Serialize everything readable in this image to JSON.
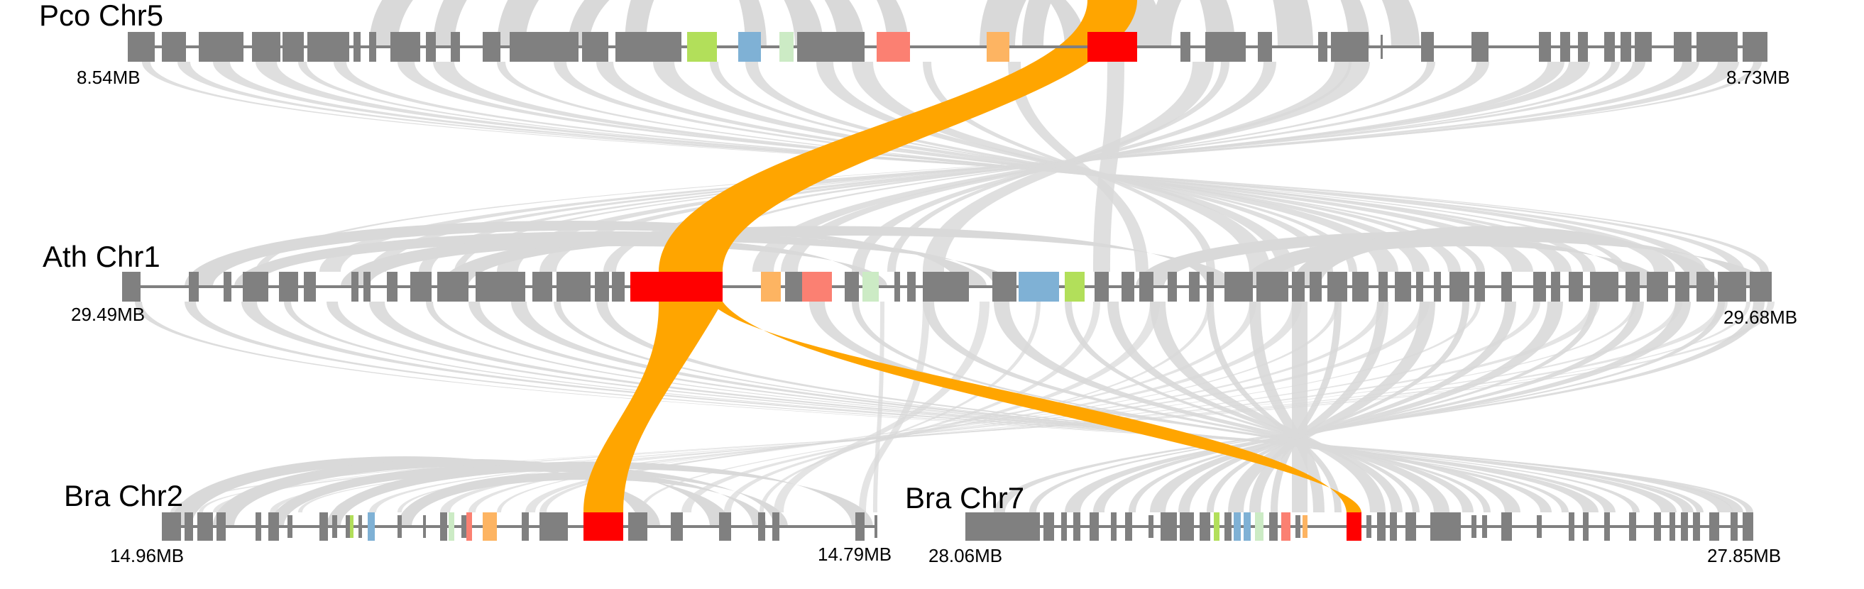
{
  "chromosomes": {
    "pco_chr5": {
      "name": "Pco Chr5",
      "start": "8.54MB",
      "end": "8.73MB"
    },
    "ath_chr1": {
      "name": "Ath Chr1",
      "start": "29.49MB",
      "end": "29.68MB"
    },
    "bra_chr2": {
      "name": "Bra Chr2",
      "start": "14.96MB",
      "end": "14.79MB"
    },
    "bra_chr7": {
      "name": "Bra Chr7",
      "start": "28.06MB",
      "end": "27.85MB"
    }
  },
  "colors": {
    "gene": "#808080",
    "axis": "#808080",
    "link": "#d9d9d9",
    "highlight_gene": "#ff0000",
    "highlight_link": "#ffa500",
    "green": "#b2df5a",
    "blue": "#7fb1d5",
    "light_green": "#ccebc5",
    "salmon": "#fb8072",
    "light_orange": "#fdb462"
  },
  "highlight": {
    "pco_chr5_gene": "red",
    "ath_chr1_gene": "red",
    "bra_chr2_gene": "red",
    "bra_chr7_gene": "red",
    "link_color": "orange"
  }
}
